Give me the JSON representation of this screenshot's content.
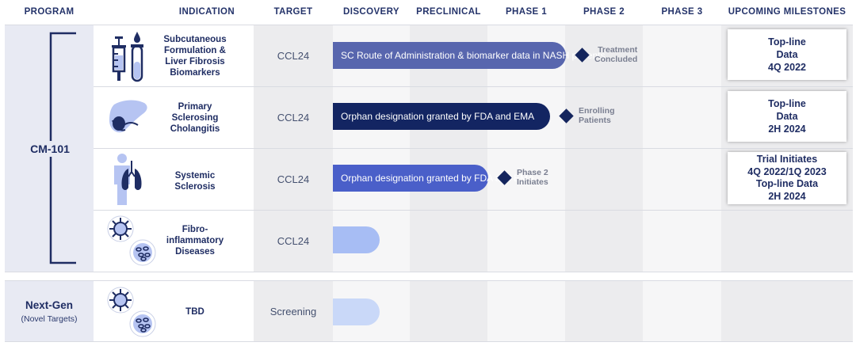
{
  "headers": {
    "program": "PROGRAM",
    "indication": "INDICATION",
    "target": "TARGET",
    "discovery": "DISCOVERY",
    "preclinical": "PRECLINICAL",
    "phase1": "PHASE 1",
    "phase2": "PHASE 2",
    "phase3": "PHASE 3",
    "milestones": "UPCOMING MILESTONES"
  },
  "programs": {
    "cm101": {
      "name": "CM-101"
    },
    "nextgen": {
      "name": "Next-Gen",
      "sub": "(Novel Targets)"
    }
  },
  "rows": [
    {
      "indication_lines": [
        "Subcutaneous",
        "Formulation &",
        "Liver Fibrosis",
        "Biomarkers"
      ],
      "target": "CCL24",
      "bar_label": "SC Route of Administration & biomarker data in NASH patients",
      "bar_color": "#5866ae",
      "progress_phase": 3.0,
      "status_lines": [
        "Treatment",
        "Concluded"
      ],
      "milestone_lines": [
        "Top-line",
        "Data",
        "4Q 2022"
      ],
      "icon": "syringe-vial-icon"
    },
    {
      "indication_lines": [
        "Primary",
        "Sclerosing",
        "Cholangitis"
      ],
      "target": "CCL24",
      "bar_label": "Orphan designation granted by FDA and EMA",
      "bar_color": "#132562",
      "progress_phase": 2.8,
      "status_lines": [
        "Enrolling",
        "Patients"
      ],
      "milestone_lines": [
        "Top-line",
        "Data",
        "2H 2024"
      ],
      "icon": "liver-icon"
    },
    {
      "indication_lines": [
        "Systemic",
        "Sclerosis"
      ],
      "target": "CCL24",
      "bar_label": "Orphan designation granted by FDA and EMA",
      "bar_color": "#4a5fc9",
      "progress_phase": 2.0,
      "status_lines": [
        "Phase 2",
        "Initiates"
      ],
      "milestone_lines": [
        "Trial Initiates",
        "4Q 2022/1Q 2023",
        "Top-line Data",
        "2H 2024"
      ],
      "icon": "body-lungs-icon"
    },
    {
      "indication_lines": [
        "Fibro-",
        "inflammatory",
        "Diseases"
      ],
      "target": "CCL24",
      "bar_label": "",
      "bar_color": "#a7bdf4",
      "progress_phase": 0.6,
      "status_lines": [],
      "milestone_lines": [],
      "icon": "cells-icon"
    },
    {
      "indication_lines": [
        "TBD"
      ],
      "target": "Screening",
      "bar_label": "",
      "bar_color": "#c9d8f8",
      "progress_phase": 0.6,
      "status_lines": [],
      "milestone_lines": [],
      "icon": "cells-icon"
    }
  ]
}
